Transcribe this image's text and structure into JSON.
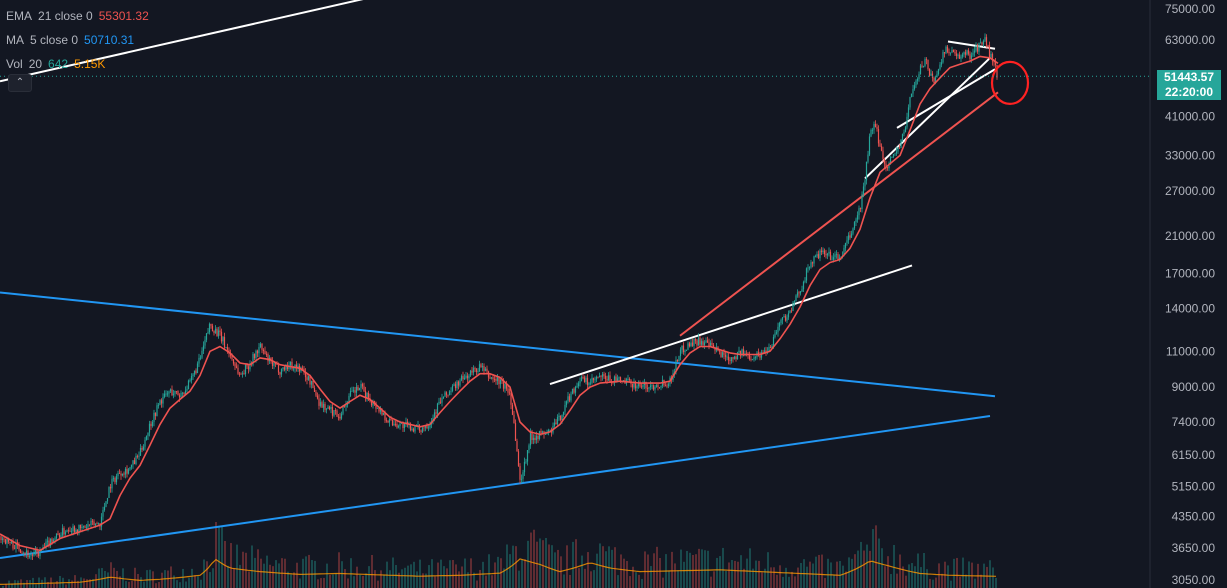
{
  "legend": {
    "ema": {
      "name": "EMA",
      "params": "21 close 0",
      "value": "55301.32",
      "color": "#ef5350"
    },
    "ma": {
      "name": "MA",
      "params": "5 close 0",
      "value": "50710.31",
      "color": "#2962ff"
    },
    "vol": {
      "name": "Vol",
      "params": "20",
      "value1": "642",
      "value2": "5.15K"
    },
    "collapse_icon": "chevron-up-icon"
  },
  "price_tag": {
    "price": "51443.57",
    "countdown": "22:20:00",
    "color": "#26a69a"
  },
  "chart_data": {
    "type": "candlestick",
    "scale": "log",
    "ylim": [
      3050,
      75000
    ],
    "y_ticks": [
      "75000.00",
      "63000.00",
      "51443.57",
      "41000.00",
      "33000.00",
      "27000.00",
      "21000.00",
      "17000.00",
      "14000.00",
      "11000.00",
      "9000.00",
      "7400.00",
      "6150.00",
      "5150.00",
      "4350.00",
      "3650.00",
      "3050.00"
    ],
    "current_price": 51443.57,
    "series": [
      {
        "name": "EMA 21 close 0",
        "color": "#ef5350"
      },
      {
        "name": "MA 5 close 0",
        "color": "#2962ff"
      },
      {
        "name": "Vol 20"
      }
    ],
    "price_path": [
      [
        0,
        3900
      ],
      [
        10,
        3750
      ],
      [
        20,
        3650
      ],
      [
        30,
        3500
      ],
      [
        40,
        3550
      ],
      [
        50,
        3800
      ],
      [
        60,
        3950
      ],
      [
        70,
        4100
      ],
      [
        80,
        4050
      ],
      [
        90,
        4150
      ],
      [
        100,
        4200
      ],
      [
        110,
        5200
      ],
      [
        120,
        5600
      ],
      [
        130,
        5700
      ],
      [
        140,
        6200
      ],
      [
        150,
        7300
      ],
      [
        160,
        8300
      ],
      [
        170,
        8800
      ],
      [
        180,
        8600
      ],
      [
        190,
        9200
      ],
      [
        200,
        10500
      ],
      [
        210,
        12800
      ],
      [
        220,
        12000
      ],
      [
        230,
        10800
      ],
      [
        240,
        9600
      ],
      [
        250,
        10300
      ],
      [
        260,
        11300
      ],
      [
        270,
        10300
      ],
      [
        280,
        9900
      ],
      [
        290,
        10200
      ],
      [
        300,
        10000
      ],
      [
        310,
        9300
      ],
      [
        320,
        8200
      ],
      [
        330,
        7900
      ],
      [
        340,
        7700
      ],
      [
        350,
        8600
      ],
      [
        360,
        9000
      ],
      [
        370,
        8400
      ],
      [
        380,
        7900
      ],
      [
        390,
        7400
      ],
      [
        400,
        7300
      ],
      [
        410,
        7200
      ],
      [
        420,
        7100
      ],
      [
        430,
        7400
      ],
      [
        440,
        8300
      ],
      [
        450,
        8800
      ],
      [
        460,
        9300
      ],
      [
        470,
        9700
      ],
      [
        480,
        10100
      ],
      [
        490,
        9500
      ],
      [
        500,
        9300
      ],
      [
        510,
        8700
      ],
      [
        515,
        7000
      ],
      [
        520,
        5300
      ],
      [
        525,
        5900
      ],
      [
        530,
        6800
      ],
      [
        540,
        6900
      ],
      [
        550,
        7000
      ],
      [
        560,
        7600
      ],
      [
        570,
        8600
      ],
      [
        580,
        9400
      ],
      [
        590,
        9200
      ],
      [
        600,
        9500
      ],
      [
        610,
        9400
      ],
      [
        620,
        9300
      ],
      [
        630,
        9200
      ],
      [
        640,
        9100
      ],
      [
        650,
        9000
      ],
      [
        660,
        9200
      ],
      [
        670,
        9300
      ],
      [
        680,
        11000
      ],
      [
        690,
        11500
      ],
      [
        700,
        11700
      ],
      [
        710,
        11300
      ],
      [
        720,
        10900
      ],
      [
        730,
        10600
      ],
      [
        740,
        10900
      ],
      [
        750,
        10700
      ],
      [
        760,
        10800
      ],
      [
        770,
        11300
      ],
      [
        780,
        13000
      ],
      [
        790,
        13700
      ],
      [
        800,
        15500
      ],
      [
        810,
        18000
      ],
      [
        820,
        19000
      ],
      [
        830,
        18800
      ],
      [
        840,
        18500
      ],
      [
        850,
        21000
      ],
      [
        860,
        24500
      ],
      [
        865,
        29000
      ],
      [
        870,
        37000
      ],
      [
        875,
        39000
      ],
      [
        880,
        35000
      ],
      [
        885,
        31000
      ],
      [
        890,
        32000
      ],
      [
        900,
        35000
      ],
      [
        905,
        38000
      ],
      [
        910,
        46000
      ],
      [
        915,
        49000
      ],
      [
        920,
        53000
      ],
      [
        925,
        57000
      ],
      [
        930,
        52000
      ],
      [
        935,
        50000
      ],
      [
        940,
        56000
      ],
      [
        945,
        59000
      ],
      [
        950,
        60000
      ],
      [
        955,
        58000
      ],
      [
        960,
        56000
      ],
      [
        965,
        59000
      ],
      [
        970,
        58000
      ],
      [
        975,
        60000
      ],
      [
        980,
        61000
      ],
      [
        985,
        63000
      ],
      [
        990,
        58000
      ],
      [
        995,
        54000
      ],
      [
        998,
        51443.57
      ]
    ],
    "ema_path": [
      [
        0,
        3950
      ],
      [
        20,
        3700
      ],
      [
        40,
        3600
      ],
      [
        60,
        3850
      ],
      [
        80,
        4000
      ],
      [
        100,
        4150
      ],
      [
        110,
        4300
      ],
      [
        120,
        4900
      ],
      [
        130,
        5400
      ],
      [
        140,
        5800
      ],
      [
        150,
        6500
      ],
      [
        160,
        7300
      ],
      [
        170,
        8000
      ],
      [
        180,
        8400
      ],
      [
        190,
        8800
      ],
      [
        200,
        9600
      ],
      [
        210,
        11000
      ],
      [
        220,
        11300
      ],
      [
        230,
        10900
      ],
      [
        240,
        10300
      ],
      [
        250,
        10200
      ],
      [
        260,
        10600
      ],
      [
        270,
        10500
      ],
      [
        280,
        10200
      ],
      [
        290,
        10100
      ],
      [
        300,
        10000
      ],
      [
        310,
        9600
      ],
      [
        320,
        8900
      ],
      [
        330,
        8300
      ],
      [
        340,
        8000
      ],
      [
        350,
        8300
      ],
      [
        360,
        8600
      ],
      [
        370,
        8400
      ],
      [
        380,
        8000
      ],
      [
        390,
        7600
      ],
      [
        400,
        7400
      ],
      [
        420,
        7200
      ],
      [
        430,
        7300
      ],
      [
        440,
        7800
      ],
      [
        450,
        8300
      ],
      [
        460,
        8800
      ],
      [
        470,
        9300
      ],
      [
        480,
        9700
      ],
      [
        490,
        9700
      ],
      [
        500,
        9500
      ],
      [
        510,
        9000
      ],
      [
        520,
        7400
      ],
      [
        530,
        7000
      ],
      [
        540,
        6900
      ],
      [
        550,
        7000
      ],
      [
        560,
        7300
      ],
      [
        570,
        7900
      ],
      [
        580,
        8600
      ],
      [
        590,
        9000
      ],
      [
        600,
        9200
      ],
      [
        620,
        9300
      ],
      [
        640,
        9200
      ],
      [
        660,
        9200
      ],
      [
        670,
        9300
      ],
      [
        680,
        10200
      ],
      [
        690,
        10900
      ],
      [
        700,
        11300
      ],
      [
        710,
        11300
      ],
      [
        720,
        11100
      ],
      [
        730,
        10900
      ],
      [
        740,
        10800
      ],
      [
        760,
        10800
      ],
      [
        770,
        11000
      ],
      [
        780,
        11800
      ],
      [
        790,
        12800
      ],
      [
        800,
        14100
      ],
      [
        810,
        15900
      ],
      [
        820,
        17400
      ],
      [
        830,
        18100
      ],
      [
        840,
        18400
      ],
      [
        850,
        19600
      ],
      [
        860,
        21800
      ],
      [
        870,
        26000
      ],
      [
        880,
        30000
      ],
      [
        890,
        31500
      ],
      [
        900,
        33000
      ],
      [
        910,
        38000
      ],
      [
        920,
        44000
      ],
      [
        930,
        48000
      ],
      [
        940,
        51000
      ],
      [
        950,
        54000
      ],
      [
        960,
        55000
      ],
      [
        970,
        56000
      ],
      [
        980,
        57500
      ],
      [
        990,
        57000
      ],
      [
        998,
        55301.32
      ]
    ],
    "volume_path": [
      [
        0,
        200
      ],
      [
        40,
        250
      ],
      [
        80,
        320
      ],
      [
        110,
        600
      ],
      [
        140,
        420
      ],
      [
        160,
        480
      ],
      [
        200,
        700
      ],
      [
        215,
        1600
      ],
      [
        230,
        1100
      ],
      [
        260,
        900
      ],
      [
        300,
        750
      ],
      [
        340,
        800
      ],
      [
        380,
        720
      ],
      [
        420,
        650
      ],
      [
        460,
        700
      ],
      [
        500,
        820
      ],
      [
        520,
        1600
      ],
      [
        540,
        1300
      ],
      [
        560,
        900
      ],
      [
        590,
        1400
      ],
      [
        610,
        1100
      ],
      [
        640,
        900
      ],
      [
        680,
        950
      ],
      [
        720,
        1000
      ],
      [
        760,
        900
      ],
      [
        800,
        800
      ],
      [
        840,
        700
      ],
      [
        870,
        1500
      ],
      [
        890,
        1200
      ],
      [
        920,
        800
      ],
      [
        950,
        700
      ],
      [
        998,
        642
      ]
    ],
    "trendlines": [
      {
        "color": "#2196f3",
        "from": [
          0,
          15300
        ],
        "to": [
          995,
          8550
        ]
      },
      {
        "color": "#2196f3",
        "from": [
          0,
          3450
        ],
        "to": [
          990,
          7650
        ]
      },
      {
        "color": "#ffffff",
        "from": [
          0,
          50000
        ],
        "to": [
          370,
          80000
        ]
      },
      {
        "color": "#ffffff",
        "from": [
          550,
          9150
        ],
        "to": [
          912,
          17800
        ]
      },
      {
        "color": "#ef5350",
        "from": [
          680,
          12000
        ],
        "to": [
          998,
          47000
        ]
      },
      {
        "color": "#ffffff",
        "from": [
          865,
          29000
        ],
        "to": [
          990,
          57000
        ]
      },
      {
        "color": "#ffffff",
        "from": [
          897,
          38500
        ],
        "to": [
          995,
          53500
        ]
      },
      {
        "color": "#ffffff",
        "from": [
          948,
          62500
        ],
        "to": [
          995,
          60000
        ]
      }
    ],
    "annotation_circle": {
      "color": "#ff2222",
      "x": 1000,
      "y": 49000
    }
  }
}
